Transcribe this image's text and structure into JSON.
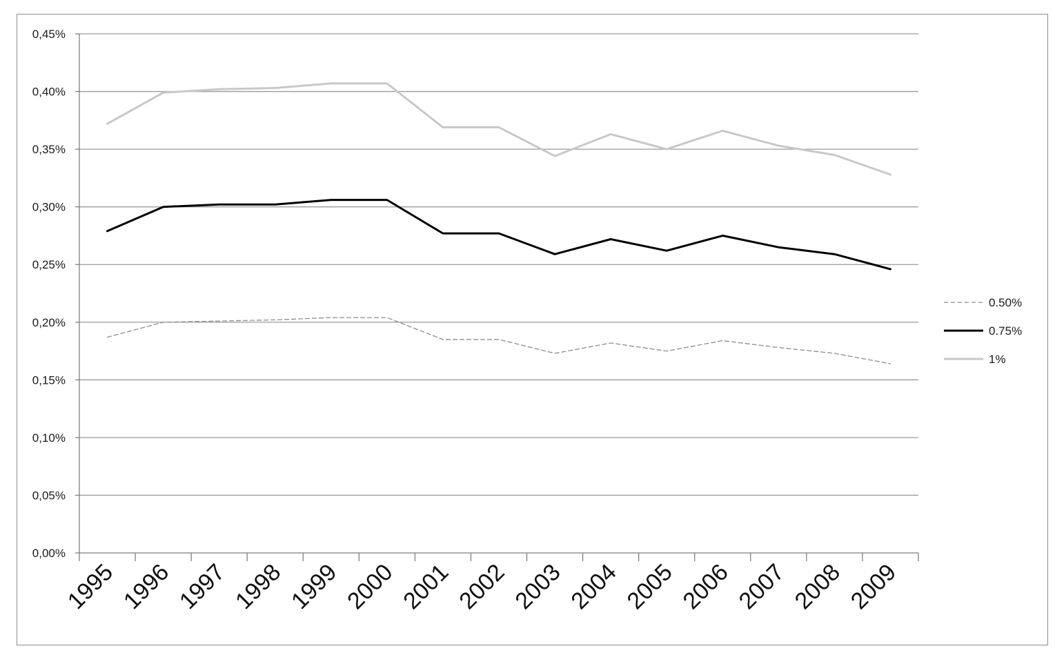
{
  "chart_data": {
    "type": "line",
    "title": "",
    "xlabel": "",
    "ylabel": "",
    "categories": [
      "1995",
      "1996",
      "1997",
      "1998",
      "1999",
      "2000",
      "2001",
      "2002",
      "2003",
      "2004",
      "2005",
      "2006",
      "2007",
      "2008",
      "2009"
    ],
    "y_ticks": [
      "0,00%",
      "0,05%",
      "0,10%",
      "0,15%",
      "0,20%",
      "0,25%",
      "0,30%",
      "0,35%",
      "0,40%",
      "0,45%"
    ],
    "ylim": [
      0,
      0.45
    ],
    "y_unit": "%",
    "grid": "horizontal",
    "legend_position": "right",
    "series": [
      {
        "name": "0.50%",
        "color": "#8c8c8c",
        "style": "dashed",
        "values": [
          0.187,
          0.2,
          0.201,
          0.202,
          0.204,
          0.204,
          0.185,
          0.185,
          0.173,
          0.182,
          0.175,
          0.184,
          0.178,
          0.173,
          0.164
        ]
      },
      {
        "name": "0.75%",
        "color": "#000000",
        "style": "solid-thick",
        "values": [
          0.279,
          0.3,
          0.302,
          0.302,
          0.306,
          0.306,
          0.277,
          0.277,
          0.259,
          0.272,
          0.262,
          0.275,
          0.265,
          0.259,
          0.246
        ]
      },
      {
        "name": "1%",
        "color": "#c8c8c8",
        "style": "solid-thick",
        "values": [
          0.372,
          0.399,
          0.402,
          0.403,
          0.407,
          0.407,
          0.369,
          0.369,
          0.344,
          0.363,
          0.35,
          0.366,
          0.353,
          0.345,
          0.328
        ]
      }
    ]
  }
}
